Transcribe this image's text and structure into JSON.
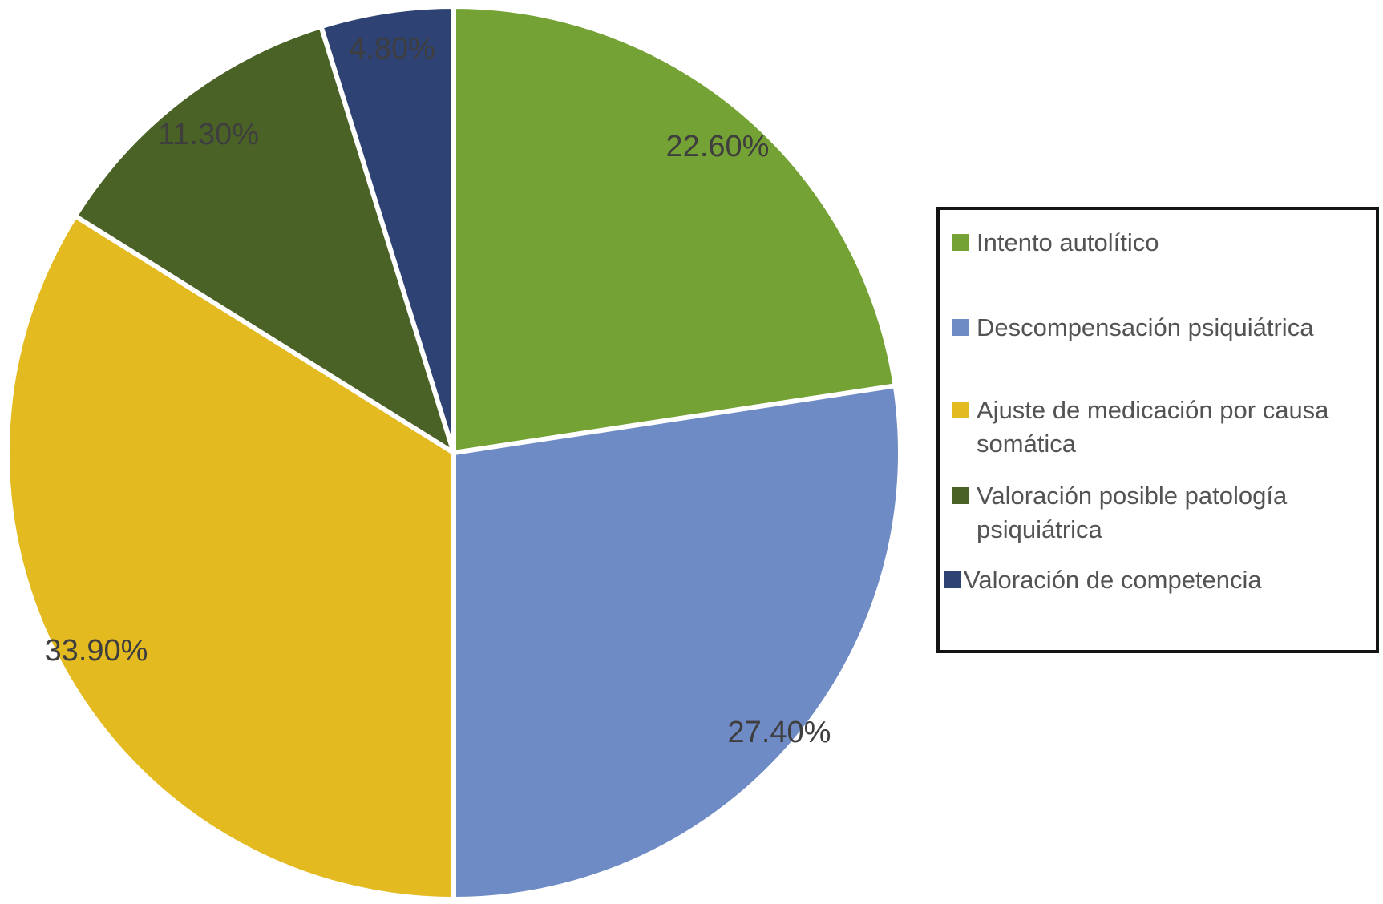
{
  "chart_data": {
    "type": "pie",
    "title": "",
    "slices": [
      {
        "label": "Intento autolítico",
        "value": 22.6,
        "display": "22.60%",
        "color": "#75A234"
      },
      {
        "label": "Descompensación psiquiátrica",
        "value": 27.4,
        "display": "27.40%",
        "color": "#6E8BC5"
      },
      {
        "label": "Ajuste de medicación por causa somática",
        "value": 33.9,
        "display": "33.90%",
        "color": "#E3BA1F"
      },
      {
        "label": "Valoración posible patología psiquiátrica",
        "value": 11.3,
        "display": "11.30%",
        "color": "#4B6227"
      },
      {
        "label": "Valoración de competencia",
        "value": 4.8,
        "display": "4.80%",
        "color": "#2E4274"
      }
    ],
    "start_angle_deg": 0,
    "direction": "clockwise",
    "legend_position": "right",
    "slice_border_color": "#FFFFFF",
    "label_color": "#3E3E3E",
    "legend_text_color": "#535353",
    "legend_border_color": "#141414",
    "background": "#FFFFFF"
  }
}
